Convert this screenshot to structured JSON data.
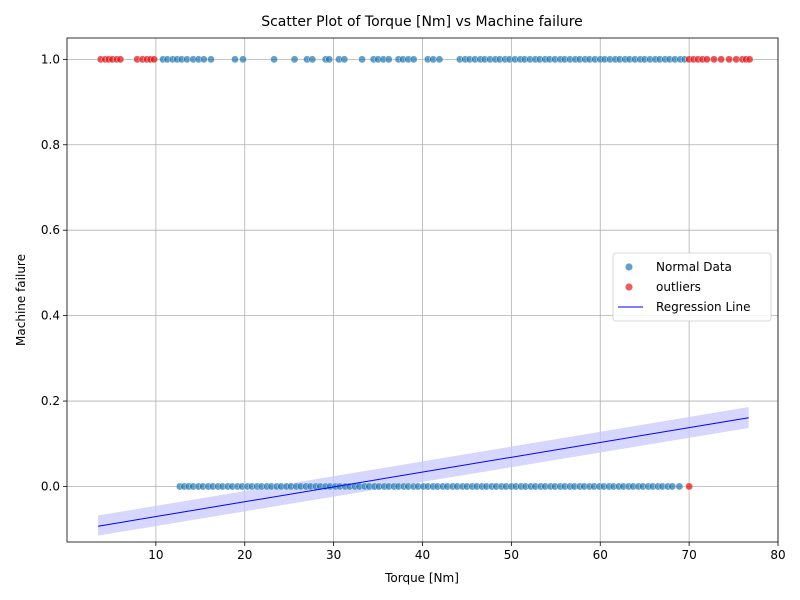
{
  "chart_data": {
    "type": "scatter",
    "title": "Scatter Plot of Torque [Nm] vs Machine failure",
    "xlabel": "Torque [Nm]",
    "ylabel": "Machine failure",
    "xlim": [
      0,
      80
    ],
    "ylim": [
      -0.13,
      1.05
    ],
    "xticks": [
      10,
      20,
      30,
      40,
      50,
      60,
      70,
      80
    ],
    "yticks": [
      0.0,
      0.2,
      0.4,
      0.6,
      0.8,
      1.0
    ],
    "xtick_labels": [
      "10",
      "20",
      "30",
      "40",
      "50",
      "60",
      "70",
      "80"
    ],
    "ytick_labels": [
      "0.0",
      "0.2",
      "0.4",
      "0.6",
      "0.8",
      "1.0"
    ],
    "grid": true,
    "legend_position": "center-right",
    "series": [
      {
        "name": "Normal Data",
        "color": "#1f77b4",
        "kind": "points",
        "y_levels": [
          {
            "y": 1,
            "x": [
              10.8,
              11.3,
              11.9,
              12.4,
              12.9,
              13.5,
              14.2,
              14.8,
              15.4,
              16.2,
              18.9,
              19.8,
              23.3,
              25.6,
              27.0,
              27.6,
              29.1,
              29.5,
              30.6,
              31.2,
              33.2,
              34.5,
              35.0,
              35.6,
              36.2,
              37.3,
              37.8,
              38.4,
              39.0,
              40.6,
              41.2,
              41.9,
              44.2,
              44.8,
              45.3,
              45.9,
              46.5,
              47.0,
              47.6,
              48.2,
              48.7,
              49.3,
              49.8,
              50.4,
              51.0,
              51.5,
              52.1,
              52.7,
              53.2,
              53.8,
              54.3,
              54.9,
              55.5,
              56.0,
              56.6,
              57.2,
              57.7,
              58.3,
              58.8,
              59.4,
              60.0,
              60.5,
              61.1,
              61.7,
              62.2,
              62.8,
              63.3,
              63.9,
              64.5,
              65.0,
              65.6,
              66.2,
              66.7,
              67.3,
              67.8,
              68.4,
              69.0,
              69.5
            ]
          },
          {
            "y": 0,
            "x": [
              12.7,
              13.2,
              13.7,
              14.2,
              14.8,
              15.3,
              15.9,
              16.4,
              17.0,
              17.5,
              18.1,
              18.6,
              19.2,
              19.7,
              20.3,
              20.8,
              21.4,
              21.9,
              22.5,
              23.0,
              23.6,
              24.1,
              24.7,
              25.2,
              25.8,
              26.3,
              26.9,
              27.4,
              28.0,
              28.5,
              29.1,
              29.6,
              30.2,
              30.7,
              31.3,
              31.8,
              32.4,
              32.9,
              33.5,
              34.0,
              34.6,
              35.1,
              35.7,
              36.2,
              36.8,
              37.3,
              37.9,
              38.4,
              39.0,
              39.5,
              40.1,
              40.6,
              41.2,
              41.7,
              42.3,
              42.8,
              43.4,
              43.9,
              44.5,
              45.0,
              45.6,
              46.1,
              46.7,
              47.2,
              47.8,
              48.3,
              48.9,
              49.4,
              50.0,
              50.5,
              51.1,
              51.6,
              52.2,
              52.7,
              53.3,
              53.8,
              54.4,
              54.9,
              55.5,
              56.0,
              56.6,
              57.1,
              57.7,
              58.2,
              58.8,
              59.3,
              59.9,
              60.4,
              61.0,
              61.5,
              62.1,
              62.6,
              63.2,
              63.7,
              64.3,
              64.8,
              65.4,
              65.9,
              66.5,
              67.0,
              67.6,
              68.1,
              68.9
            ]
          }
        ]
      },
      {
        "name": "outliers",
        "color": "#e41a1c",
        "kind": "points",
        "y_levels": [
          {
            "y": 1,
            "x": [
              3.8,
              4.3,
              4.7,
              5.1,
              5.6,
              6.0,
              7.9,
              8.5,
              9.0,
              9.4,
              9.8,
              70.0,
              70.5,
              71.0,
              71.5,
              72.0,
              72.8,
              73.6,
              74.5,
              75.3,
              76.0,
              76.4,
              76.8
            ]
          },
          {
            "y": 0,
            "x": [
              70.0
            ]
          }
        ]
      },
      {
        "name": "Regression Line",
        "color": "#0000ff",
        "kind": "line",
        "x": [
          3.5,
          76.7
        ],
        "y": [
          -0.093,
          0.161
        ],
        "ci_lower": [
          -0.115,
          0.137
        ],
        "ci_upper": [
          -0.068,
          0.186
        ],
        "ci_color": "#c8c8ff"
      }
    ]
  }
}
